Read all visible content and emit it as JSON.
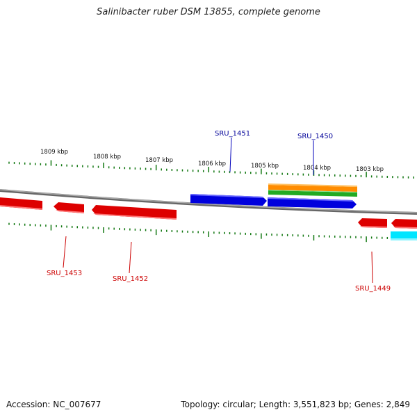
{
  "title": "Salinibacter ruber DSM 13855, complete genome",
  "footer": {
    "accession": "Accession: NC_007677",
    "summary": "Topology: circular; Length: 3,551,823 bp; Genes: 2,849"
  },
  "scale": {
    "labels": [
      "1809 kbp",
      "1808 kbp",
      "1807 kbp",
      "1806 kbp",
      "1805 kbp",
      "1804 kbp",
      "1803 kbp"
    ]
  },
  "genes": {
    "forward": [
      {
        "id": "SRU_1451",
        "color": "#0000dd"
      },
      {
        "id": "SRU_1450",
        "color": "#0000dd"
      }
    ],
    "reverse": [
      {
        "id": "SRU_1453",
        "color": "#dd0000"
      },
      {
        "id": "SRU_1452",
        "color": "#dd0000"
      },
      {
        "id": "SRU_1449",
        "color": "#dd0000"
      }
    ],
    "feature_colors": {
      "backbone": "#888888",
      "tick": "#117711",
      "orange_feature": "#ff8c00",
      "green_feature": "#33bb33",
      "cyan_feature": "#00e5ff"
    }
  }
}
